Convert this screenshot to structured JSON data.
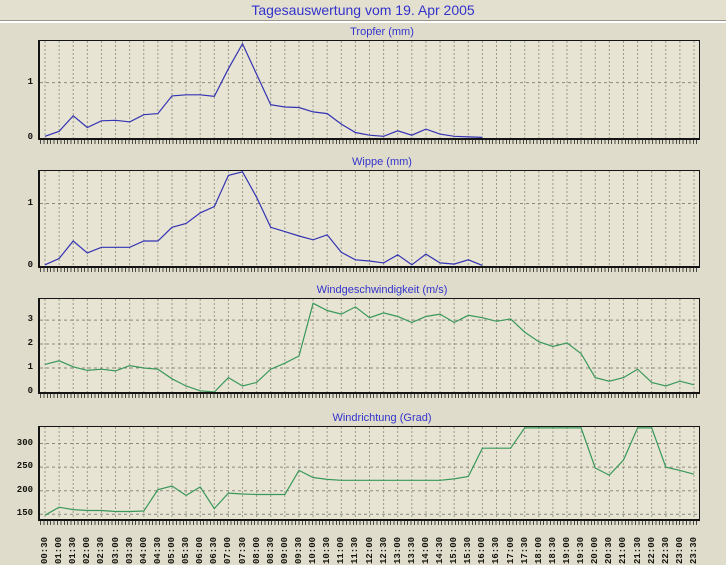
{
  "page": {
    "title": "Tagesauswertung vom 19. Apr 2005"
  },
  "colors": {
    "title_blue": "#3333cc",
    "line_blue": "#3333b3",
    "line_green": "#399858",
    "page_background": "#dfdccb",
    "plot_background": "#e7e4d4"
  },
  "axis": {
    "time_labels": [
      "00:30",
      "01:00",
      "01:30",
      "02:00",
      "02:30",
      "03:00",
      "03:30",
      "04:00",
      "04:30",
      "05:00",
      "05:30",
      "06:00",
      "06:30",
      "07:00",
      "07:30",
      "08:00",
      "08:30",
      "09:00",
      "09:30",
      "10:00",
      "10:30",
      "11:00",
      "11:30",
      "12:00",
      "12:30",
      "13:00",
      "13:30",
      "14:00",
      "14:30",
      "15:00",
      "15:30",
      "16:00",
      "16:30",
      "17:00",
      "17:30",
      "18:00",
      "18:30",
      "19:00",
      "19:30",
      "20:00",
      "20:30",
      "21:00",
      "21:30",
      "22:00",
      "22:30",
      "23:00",
      "23:30"
    ]
  },
  "chart_data": [
    {
      "type": "line",
      "id": "tropfer",
      "title": "Tropfer (mm)",
      "color": "#3333b3",
      "ylim": [
        0,
        1.75
      ],
      "yticks": [
        0,
        1
      ],
      "grid": true,
      "values": [
        0.03,
        0.12,
        0.4,
        0.19,
        0.31,
        0.32,
        0.29,
        0.42,
        0.44,
        0.76,
        0.78,
        0.78,
        0.75,
        1.25,
        1.7,
        1.15,
        0.6,
        0.56,
        0.55,
        0.47,
        0.44,
        0.25,
        0.1,
        0.05,
        0.03,
        0.13,
        0.05,
        0.16,
        0.07,
        0.03,
        0.02,
        0.01,
        null,
        null,
        null,
        null,
        null,
        null,
        null,
        null,
        null,
        null,
        null,
        null,
        null,
        null,
        null
      ]
    },
    {
      "type": "line",
      "id": "wippe",
      "title": "Wippe (mm)",
      "color": "#3333b3",
      "ylim": [
        0,
        1.52
      ],
      "yticks": [
        0,
        1
      ],
      "grid": true,
      "values": [
        0.02,
        0.12,
        0.4,
        0.21,
        0.3,
        0.3,
        0.3,
        0.4,
        0.4,
        0.62,
        0.68,
        0.85,
        0.95,
        1.45,
        1.55,
        1.1,
        0.62,
        0.55,
        0.48,
        0.42,
        0.5,
        0.22,
        0.1,
        0.08,
        0.05,
        0.18,
        0.02,
        0.19,
        0.05,
        0.03,
        0.1,
        0.01,
        null,
        null,
        null,
        null,
        null,
        null,
        null,
        null,
        null,
        null,
        null,
        null,
        null,
        null,
        null
      ]
    },
    {
      "type": "line",
      "id": "windgeschwindigkeit",
      "title": "Windgeschwindigkeit (m/s)",
      "color": "#399858",
      "ylim": [
        0,
        3.88
      ],
      "yticks": [
        0,
        1,
        2,
        3
      ],
      "grid": true,
      "values": [
        1.15,
        1.3,
        1.05,
        0.9,
        0.95,
        0.88,
        1.1,
        1.0,
        0.95,
        0.55,
        0.25,
        0.05,
        0.0,
        0.6,
        0.25,
        0.4,
        0.95,
        1.2,
        1.5,
        3.7,
        3.4,
        3.25,
        3.55,
        3.1,
        3.3,
        3.15,
        2.9,
        3.15,
        3.25,
        2.9,
        3.2,
        3.1,
        2.95,
        3.05,
        2.5,
        2.1,
        1.9,
        2.05,
        1.6,
        0.6,
        0.45,
        0.6,
        0.95,
        0.4,
        0.25,
        0.45,
        0.3
      ]
    },
    {
      "type": "line",
      "id": "windrichtung",
      "title": "Windrichtung (Grad)",
      "color": "#399858",
      "ylim": [
        140,
        335
      ],
      "yticks": [
        150,
        200,
        250,
        300
      ],
      "grid": true,
      "values": [
        148,
        165,
        160,
        158,
        158,
        156,
        156,
        157,
        202,
        210,
        190,
        208,
        162,
        195,
        193,
        192,
        192,
        192,
        243,
        228,
        224,
        222,
        222,
        222,
        222,
        222,
        222,
        222,
        222,
        225,
        230,
        290,
        290,
        290,
        333,
        333,
        333,
        333,
        333,
        248,
        233,
        265,
        333,
        333,
        250,
        243,
        235
      ]
    }
  ]
}
